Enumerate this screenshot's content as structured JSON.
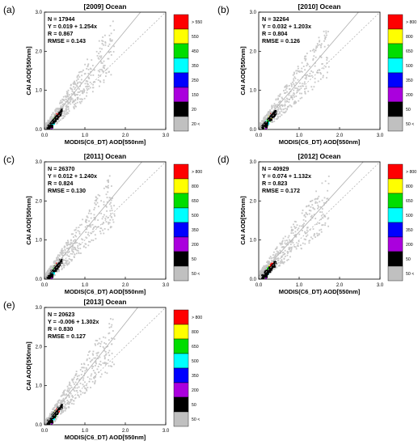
{
  "chart_data": [
    {
      "type": "scatter",
      "panel_label": "(a)",
      "title": "[2009]  Ocean",
      "xlabel": "MODIS(C6_DT)  AOD[550nm]",
      "ylabel": "CAI AOD[550nm]",
      "xlim": [
        0,
        3.0
      ],
      "ylim": [
        0,
        3.0
      ],
      "x_ticks": [
        "0.0",
        "1.0",
        "2.0",
        "3.0"
      ],
      "y_ticks": [
        "0.0",
        "1.0",
        "2.0",
        "3.0"
      ],
      "stats": [
        "N = 17944",
        "Y = 0.019 + 1.254x",
        "R = 0.867",
        "RMSE = 0.143"
      ],
      "regression": {
        "intercept": 0.019,
        "slope": 1.254
      },
      "colorbar_labels": [
        "> 550",
        "550",
        "450",
        "350",
        "250",
        "150",
        "20",
        "20 <"
      ]
    },
    {
      "type": "scatter",
      "panel_label": "(b)",
      "title": "[2010]  Ocean",
      "xlabel": "MODIS(C6_DT)  AOD[550nm]",
      "ylabel": "CAI AOD[550nm]",
      "xlim": [
        0,
        3.0
      ],
      "ylim": [
        0,
        3.0
      ],
      "x_ticks": [
        "0.0",
        "1.0",
        "2.0",
        "3.0"
      ],
      "y_ticks": [
        "0.0",
        "1.0",
        "2.0",
        "3.0"
      ],
      "stats": [
        "N = 32264",
        "Y = 0.032 + 1.203x",
        "R = 0.804",
        "RMSE = 0.126"
      ],
      "regression": {
        "intercept": 0.032,
        "slope": 1.203
      },
      "colorbar_labels": [
        "> 800",
        "800",
        "650",
        "500",
        "350",
        "200",
        "50",
        "50 <"
      ]
    },
    {
      "type": "scatter",
      "panel_label": "(c)",
      "title": "[2011]  Ocean",
      "xlabel": "MODIS(C6_DT)  AOD[550nm]",
      "ylabel": "CAI AOD[550nm]",
      "xlim": [
        0,
        3.0
      ],
      "ylim": [
        0,
        3.0
      ],
      "x_ticks": [
        "0.0",
        "1.0",
        "2.0",
        "3.0"
      ],
      "y_ticks": [
        "0.0",
        "1.0",
        "2.0",
        "3.0"
      ],
      "stats": [
        "N = 26370",
        "Y = 0.012 + 1.240x",
        "R = 0.824",
        "RMSE = 0.130"
      ],
      "regression": {
        "intercept": 0.012,
        "slope": 1.24
      },
      "colorbar_labels": [
        "> 800",
        "800",
        "650",
        "500",
        "350",
        "200",
        "50",
        "50 <"
      ]
    },
    {
      "type": "scatter",
      "panel_label": "(d)",
      "title": "[2012]  Ocean",
      "xlabel": "MODIS(C6_DT)  AOD[550nm]",
      "ylabel": "CAI AOD[550nm]",
      "xlim": [
        0,
        3.0
      ],
      "ylim": [
        0,
        3.0
      ],
      "x_ticks": [
        "0.0",
        "1.0",
        "2.0",
        "3.0"
      ],
      "y_ticks": [
        "0.0",
        "1.0",
        "2.0",
        "3.0"
      ],
      "stats": [
        "N = 40929",
        "Y = 0.074 + 1.132x",
        "R = 0.823",
        "RMSE = 0.172"
      ],
      "regression": {
        "intercept": 0.074,
        "slope": 1.132
      },
      "colorbar_labels": [
        "> 800",
        "800",
        "650",
        "500",
        "350",
        "200",
        "50",
        "50 <"
      ]
    },
    {
      "type": "scatter",
      "panel_label": "(e)",
      "title": "[2013]  Ocean",
      "xlabel": "MODIS(C6_DT)  AOD[550nm]",
      "ylabel": "CAI AOD[550nm]",
      "xlim": [
        0,
        3.0
      ],
      "ylim": [
        0,
        3.0
      ],
      "x_ticks": [
        "0.0",
        "1.0",
        "2.0",
        "3.0"
      ],
      "y_ticks": [
        "0.0",
        "1.0",
        "2.0",
        "3.0"
      ],
      "stats": [
        "N = 20623",
        "Y = -0.006 + 1.302x",
        "R = 0.830",
        "RMSE = 0.127"
      ],
      "regression": {
        "intercept": -0.006,
        "slope": 1.302
      },
      "colorbar_labels": [
        "> 800",
        "800",
        "650",
        "500",
        "350",
        "200",
        "50",
        "50 <"
      ]
    }
  ],
  "colorbar_colors": [
    "#ff0000",
    "#ffff00",
    "#00dd00",
    "#00ffff",
    "#0000ff",
    "#aa00dd",
    "#000000",
    "#c0c0c0"
  ],
  "scatter_color": "#c8c8c8",
  "line_color": "#b4b4b4"
}
